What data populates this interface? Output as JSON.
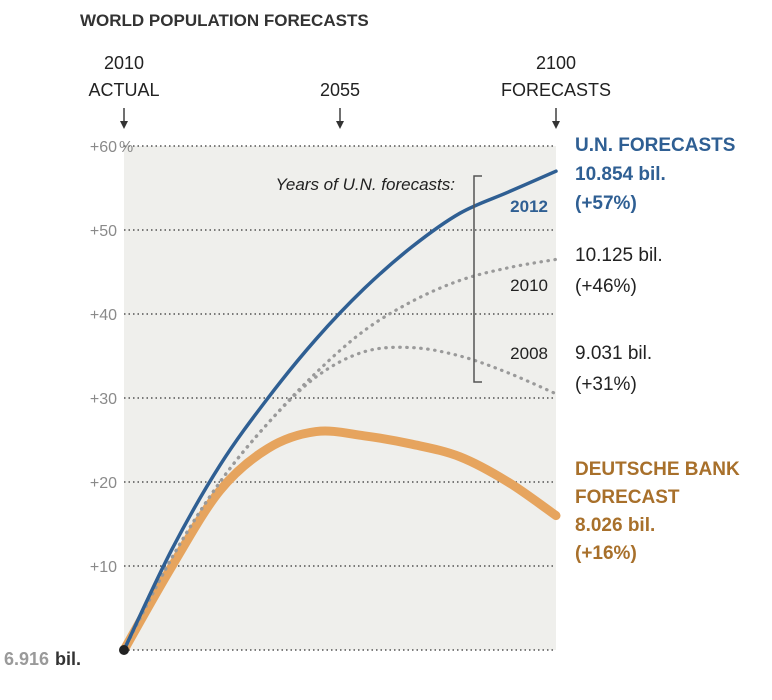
{
  "chart_data": {
    "type": "line",
    "title": "WORLD POPULATION FORECASTS",
    "x_markers": [
      {
        "year": 2010,
        "lines": [
          "2010",
          "ACTUAL"
        ]
      },
      {
        "year": 2055,
        "lines": [
          "2055"
        ]
      },
      {
        "year": 2100,
        "lines": [
          "2100",
          "FORECASTS"
        ]
      }
    ],
    "xlim": [
      2010,
      2100
    ],
    "ylim": [
      0,
      60
    ],
    "y_ticks": [
      {
        "value": 10,
        "label": "+10"
      },
      {
        "value": 20,
        "label": "+20"
      },
      {
        "value": 30,
        "label": "+30"
      },
      {
        "value": 40,
        "label": "+40"
      },
      {
        "value": 50,
        "label": "+50"
      },
      {
        "value": 60,
        "label": "+60"
      }
    ],
    "y_unit": "%",
    "grid": true,
    "start_label": {
      "number": "6.916",
      "unit": "bil."
    },
    "bracket_note": "Years of U.N. forecasts:",
    "series": [
      {
        "name": "2012",
        "style": "solid",
        "color": "#2f5f93",
        "x": [
          2010,
          2020,
          2030,
          2040,
          2050,
          2060,
          2070,
          2080,
          2090,
          2100
        ],
        "y": [
          0,
          12,
          22,
          30,
          37,
          43,
          48,
          52,
          54.5,
          57
        ],
        "end_label": [
          "U.N. FORECASTS",
          "10.854 bil.",
          "(+57%)"
        ]
      },
      {
        "name": "2010",
        "style": "dotted",
        "color": "#9a9a9a",
        "x": [
          2010,
          2020,
          2030,
          2040,
          2050,
          2060,
          2070,
          2080,
          2090,
          2100
        ],
        "y": [
          0,
          11,
          20,
          27,
          33,
          38,
          41.5,
          44,
          45.5,
          46.5
        ],
        "end_label": [
          "10.125 bil.",
          "(+46%)"
        ]
      },
      {
        "name": "2008",
        "style": "dotted",
        "color": "#9a9a9a",
        "x": [
          2010,
          2020,
          2030,
          2040,
          2050,
          2060,
          2070,
          2080,
          2090,
          2100
        ],
        "y": [
          0,
          11,
          20,
          27,
          32.5,
          35.5,
          36,
          35,
          33,
          30.5
        ],
        "end_label": [
          "9.031 bil.",
          "(+31%)"
        ]
      },
      {
        "name": "DEUTSCHE BANK FORECAST",
        "style": "thick",
        "color": "#e6a45e",
        "x": [
          2010,
          2020,
          2030,
          2040,
          2050,
          2060,
          2070,
          2080,
          2090,
          2100
        ],
        "y": [
          0,
          10,
          19,
          24,
          26,
          25.5,
          24.5,
          23,
          20,
          16
        ],
        "end_label": [
          "DEUTSCHE BANK",
          "FORECAST",
          "8.026 bil.",
          "(+16%)"
        ]
      }
    ]
  }
}
